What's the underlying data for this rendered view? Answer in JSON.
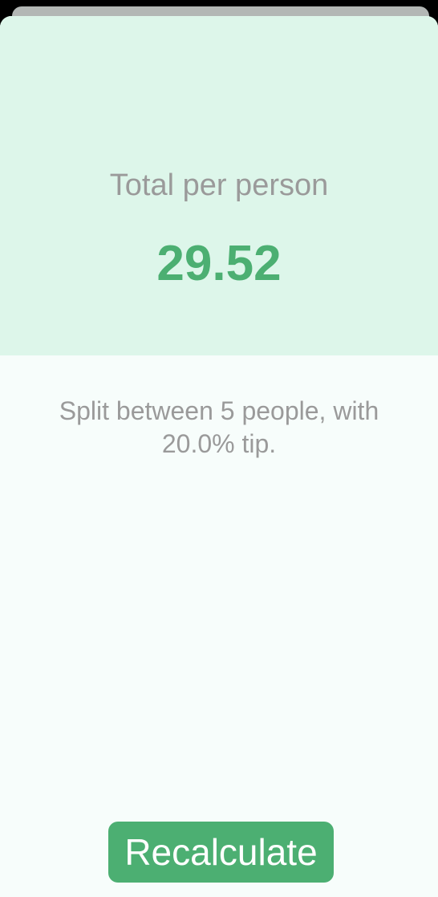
{
  "result": {
    "label": "Total per person",
    "value": "29.52"
  },
  "settings": {
    "text": "Split between 5 people, with 20.0% tip."
  },
  "actions": {
    "recalculate_label": "Recalculate"
  },
  "colors": {
    "accent": "#4caf72",
    "panel_background": "#ddf6ea",
    "sheet_background": "#f7fdfb",
    "secondary_text": "#9a9a9a"
  }
}
